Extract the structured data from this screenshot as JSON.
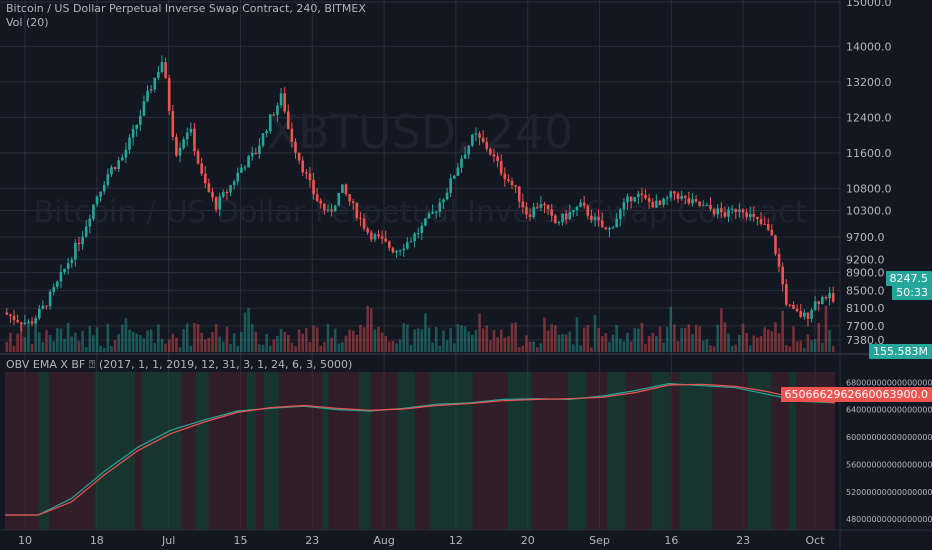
{
  "header": {
    "title": "Bitcoin / US Dollar Perpetual Inverse Swap Contract, 240, BITMEX",
    "vol_label": "Vol (20)"
  },
  "watermark": {
    "symbol": "XBTUSD, 240",
    "name": "Bitcoin / US Dollar Perpetual Inverse Swap Contract"
  },
  "indicator": {
    "label": "OBV EMA X BF ⍰ (2017, 1, 1, 2019, 12, 31, 3, 1, 24, 6, 3, 5000)"
  },
  "price_tags": {
    "last_price": "8247.5",
    "countdown": "50:33",
    "volume": "155.583M",
    "obv_value": "6506662962660063900.0"
  },
  "chart_data": [
    {
      "type": "candlestick",
      "title": "Bitcoin / US Dollar Perpetual Inverse Swap Contract, 240, BITMEX",
      "x_ticks": [
        "10",
        "18",
        "Jul",
        "15",
        "23",
        "Aug",
        "12",
        "20",
        "Sep",
        "16",
        "23",
        "Oct"
      ],
      "y_ticks": [
        "15000.0",
        "14000.0",
        "13200.0",
        "12400.0",
        "11600.0",
        "10800.0",
        "10300.0",
        "9700.0",
        "9200.0",
        "8900.0",
        "8500.0",
        "8100.0",
        "7700.0",
        "7380.0"
      ],
      "price_path": [
        [
          0,
          8000
        ],
        [
          2,
          7850
        ],
        [
          4,
          7750
        ],
        [
          6,
          8100
        ],
        [
          8,
          8600
        ],
        [
          10,
          9200
        ],
        [
          12,
          9800
        ],
        [
          14,
          10600
        ],
        [
          16,
          11200
        ],
        [
          18,
          11500
        ],
        [
          20,
          12200
        ],
        [
          22,
          13000
        ],
        [
          24,
          13700
        ],
        [
          25,
          12600
        ],
        [
          26,
          11600
        ],
        [
          28,
          12200
        ],
        [
          30,
          11000
        ],
        [
          32,
          10400
        ],
        [
          34,
          10800
        ],
        [
          36,
          11300
        ],
        [
          38,
          11600
        ],
        [
          40,
          12300
        ],
        [
          42,
          12900
        ],
        [
          43,
          12100
        ],
        [
          45,
          11300
        ],
        [
          47,
          10600
        ],
        [
          49,
          10200
        ],
        [
          51,
          10800
        ],
        [
          53,
          10300
        ],
        [
          55,
          9800
        ],
        [
          57,
          9600
        ],
        [
          59,
          9400
        ],
        [
          61,
          9600
        ],
        [
          63,
          9900
        ],
        [
          65,
          10300
        ],
        [
          67,
          10800
        ],
        [
          69,
          11500
        ],
        [
          71,
          12000
        ],
        [
          73,
          11700
        ],
        [
          75,
          11200
        ],
        [
          77,
          10800
        ],
        [
          79,
          10200
        ],
        [
          81,
          10500
        ],
        [
          83,
          10000
        ],
        [
          85,
          10200
        ],
        [
          87,
          10400
        ],
        [
          89,
          10100
        ],
        [
          91,
          9800
        ],
        [
          93,
          10300
        ],
        [
          95,
          10700
        ],
        [
          97,
          10500
        ],
        [
          99,
          10400
        ],
        [
          101,
          10700
        ],
        [
          103,
          10500
        ],
        [
          105,
          10400
        ],
        [
          107,
          10300
        ],
        [
          109,
          10200
        ],
        [
          111,
          10400
        ],
        [
          113,
          10100
        ],
        [
          115,
          9900
        ],
        [
          116,
          9600
        ],
        [
          117,
          8900
        ],
        [
          118,
          8200
        ],
        [
          119,
          8000
        ],
        [
          121,
          7900
        ],
        [
          122,
          8200
        ],
        [
          124,
          8400
        ],
        [
          125,
          8247.5
        ]
      ],
      "x_range": [
        0,
        125
      ],
      "ylim": [
        7200,
        15000
      ]
    },
    {
      "type": "line",
      "title": "OBV EMA X BF ⍰ (2017, 1, 1, 2019, 12, 31, 3, 1, 24, 6, 3, 5000)",
      "y_ticks": [
        "6800000000000000000.0",
        "6400000000000000000.0",
        "6000000000000000000.0",
        "5600000000000000000.0",
        "5200000000000000000.0",
        "4800000000000000000.0"
      ],
      "series": [
        {
          "values": [
            [
              0,
              4.86
            ],
            [
              5,
              4.86
            ],
            [
              10,
              5.1
            ],
            [
              15,
              5.5
            ],
            [
              20,
              5.85
            ],
            [
              25,
              6.1
            ],
            [
              30,
              6.25
            ],
            [
              35,
              6.38
            ],
            [
              40,
              6.42
            ],
            [
              45,
              6.45
            ],
            [
              50,
              6.4
            ],
            [
              55,
              6.38
            ],
            [
              60,
              6.42
            ],
            [
              65,
              6.48
            ],
            [
              70,
              6.5
            ],
            [
              75,
              6.55
            ],
            [
              80,
              6.56
            ],
            [
              85,
              6.55
            ],
            [
              90,
              6.6
            ],
            [
              95,
              6.68
            ],
            [
              100,
              6.78
            ],
            [
              105,
              6.75
            ],
            [
              110,
              6.72
            ],
            [
              115,
              6.62
            ],
            [
              120,
              6.52
            ],
            [
              125,
              6.5
            ]
          ],
          "color": "#26a69a"
        },
        {
          "values": [
            [
              0,
              4.86
            ],
            [
              5,
              4.86
            ],
            [
              10,
              5.05
            ],
            [
              15,
              5.45
            ],
            [
              20,
              5.8
            ],
            [
              25,
              6.05
            ],
            [
              30,
              6.22
            ],
            [
              35,
              6.36
            ],
            [
              40,
              6.43
            ],
            [
              45,
              6.46
            ],
            [
              50,
              6.42
            ],
            [
              55,
              6.39
            ],
            [
              60,
              6.41
            ],
            [
              65,
              6.46
            ],
            [
              70,
              6.49
            ],
            [
              75,
              6.53
            ],
            [
              80,
              6.55
            ],
            [
              85,
              6.56
            ],
            [
              90,
              6.58
            ],
            [
              95,
              6.65
            ],
            [
              100,
              6.76
            ],
            [
              105,
              6.77
            ],
            [
              110,
              6.74
            ],
            [
              115,
              6.66
            ],
            [
              120,
              6.55
            ],
            [
              125,
              6.5
            ]
          ],
          "color": "#ef5350"
        }
      ],
      "ylim": [
        4.7,
        6.95
      ]
    }
  ],
  "colors": {
    "background": "#131722",
    "up": "#26a69a",
    "down": "#ef5350",
    "grid": "#2a2e39",
    "text": "#b2b5be"
  }
}
